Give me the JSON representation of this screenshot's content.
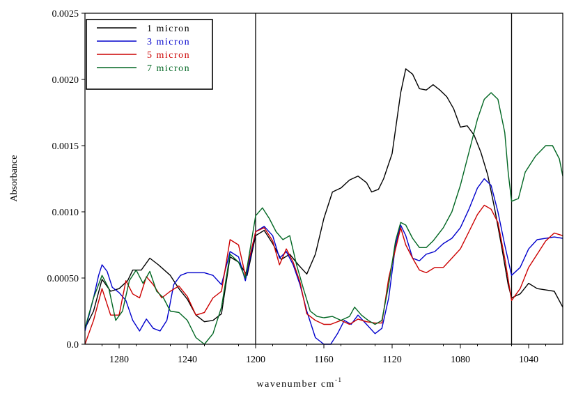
{
  "chart_data": {
    "type": "line",
    "title": "",
    "xlabel": "wavenumber cm",
    "xlabel_superscript": "-1",
    "ylabel": "Absorbance",
    "xlim": [
      1300,
      1020
    ],
    "ylim": [
      0,
      0.0025
    ],
    "x_reversed": true,
    "x_ticks": [
      1280,
      1240,
      1200,
      1160,
      1120,
      1080,
      1040
    ],
    "x_tick_labels": [
      "1280",
      "1240",
      "1200",
      "1160",
      "1120",
      "1080",
      "1040"
    ],
    "y_ticks": [
      0,
      0.0005,
      0.001,
      0.0015,
      0.002,
      0.0025
    ],
    "y_tick_labels": [
      "0.0",
      "0.00050",
      "0.0010",
      "0.0015",
      "0.0020",
      "0.0025"
    ],
    "vertical_lines": [
      1200,
      1050
    ],
    "legend_position": "top-left",
    "grid": false,
    "series": [
      {
        "name": "1 micron",
        "color": "#000000",
        "points": [
          [
            1300,
            0.00012
          ],
          [
            1295,
            0.00025
          ],
          [
            1290,
            0.00049
          ],
          [
            1285,
            0.0004
          ],
          [
            1280,
            0.00042
          ],
          [
            1275,
            0.00048
          ],
          [
            1272,
            0.00056
          ],
          [
            1267,
            0.00056
          ],
          [
            1262,
            0.00065
          ],
          [
            1257,
            0.0006
          ],
          [
            1250,
            0.00052
          ],
          [
            1245,
            0.00042
          ],
          [
            1240,
            0.00034
          ],
          [
            1235,
            0.00022
          ],
          [
            1230,
            0.00017
          ],
          [
            1225,
            0.00018
          ],
          [
            1220,
            0.00023
          ],
          [
            1215,
            0.00066
          ],
          [
            1210,
            0.00062
          ],
          [
            1205,
            0.00052
          ],
          [
            1200,
            0.00082
          ],
          [
            1195,
            0.00086
          ],
          [
            1190,
            0.00076
          ],
          [
            1185,
            0.00064
          ],
          [
            1180,
            0.00068
          ],
          [
            1175,
            0.0006
          ],
          [
            1170,
            0.00053
          ],
          [
            1165,
            0.00068
          ],
          [
            1160,
            0.00095
          ],
          [
            1155,
            0.00115
          ],
          [
            1150,
            0.00118
          ],
          [
            1145,
            0.00124
          ],
          [
            1140,
            0.00127
          ],
          [
            1135,
            0.00122
          ],
          [
            1132,
            0.00115
          ],
          [
            1128,
            0.00117
          ],
          [
            1125,
            0.00125
          ],
          [
            1120,
            0.00144
          ],
          [
            1115,
            0.0019
          ],
          [
            1112,
            0.00208
          ],
          [
            1108,
            0.00204
          ],
          [
            1104,
            0.00193
          ],
          [
            1100,
            0.00192
          ],
          [
            1096,
            0.00196
          ],
          [
            1092,
            0.00192
          ],
          [
            1088,
            0.00187
          ],
          [
            1084,
            0.00178
          ],
          [
            1080,
            0.00164
          ],
          [
            1076,
            0.00165
          ],
          [
            1072,
            0.00158
          ],
          [
            1068,
            0.00145
          ],
          [
            1064,
            0.00128
          ],
          [
            1060,
            0.00103
          ],
          [
            1056,
            0.00075
          ],
          [
            1052,
            0.00045
          ],
          [
            1050,
            0.00035
          ],
          [
            1045,
            0.00038
          ],
          [
            1040,
            0.00046
          ],
          [
            1035,
            0.00042
          ],
          [
            1030,
            0.00041
          ],
          [
            1025,
            0.0004
          ],
          [
            1020,
            0.00028
          ]
        ]
      },
      {
        "name": "3 micron",
        "color": "#0000cc",
        "points": [
          [
            1300,
            0.0001
          ],
          [
            1295,
            0.00035
          ],
          [
            1292,
            0.00052
          ],
          [
            1290,
            0.0006
          ],
          [
            1287,
            0.00055
          ],
          [
            1284,
            0.00043
          ],
          [
            1280,
            0.00039
          ],
          [
            1276,
            0.00033
          ],
          [
            1272,
            0.00018
          ],
          [
            1268,
            0.0001
          ],
          [
            1264,
            0.00019
          ],
          [
            1260,
            0.00012
          ],
          [
            1256,
            0.0001
          ],
          [
            1252,
            0.00018
          ],
          [
            1248,
            0.00045
          ],
          [
            1244,
            0.00052
          ],
          [
            1240,
            0.00054
          ],
          [
            1230,
            0.00054
          ],
          [
            1225,
            0.00052
          ],
          [
            1220,
            0.00045
          ],
          [
            1215,
            0.0007
          ],
          [
            1210,
            0.00066
          ],
          [
            1206,
            0.00048
          ],
          [
            1200,
            0.00085
          ],
          [
            1195,
            0.00089
          ],
          [
            1190,
            0.00082
          ],
          [
            1186,
            0.00065
          ],
          [
            1182,
            0.0007
          ],
          [
            1178,
            0.0006
          ],
          [
            1174,
            0.00045
          ],
          [
            1170,
            0.00025
          ],
          [
            1165,
            5e-05
          ],
          [
            1160,
            0.0
          ],
          [
            1156,
            0.0
          ],
          [
            1152,
            8e-05
          ],
          [
            1148,
            0.00018
          ],
          [
            1144,
            0.00015
          ],
          [
            1140,
            0.00022
          ],
          [
            1135,
            0.00015
          ],
          [
            1130,
            8e-05
          ],
          [
            1126,
            0.00012
          ],
          [
            1122,
            0.00035
          ],
          [
            1118,
            0.00075
          ],
          [
            1115,
            0.0009
          ],
          [
            1112,
            0.00082
          ],
          [
            1108,
            0.00065
          ],
          [
            1104,
            0.00063
          ],
          [
            1100,
            0.00068
          ],
          [
            1095,
            0.0007
          ],
          [
            1090,
            0.00076
          ],
          [
            1085,
            0.0008
          ],
          [
            1080,
            0.00088
          ],
          [
            1075,
            0.00102
          ],
          [
            1070,
            0.00118
          ],
          [
            1066,
            0.00125
          ],
          [
            1062,
            0.0012
          ],
          [
            1058,
            0.001
          ],
          [
            1054,
            0.00075
          ],
          [
            1050,
            0.00052
          ],
          [
            1045,
            0.00058
          ],
          [
            1040,
            0.00072
          ],
          [
            1035,
            0.00079
          ],
          [
            1030,
            0.0008
          ],
          [
            1025,
            0.00081
          ],
          [
            1020,
            0.0008
          ]
        ]
      },
      {
        "name": "5 micron",
        "color": "#cc0000",
        "points": [
          [
            1300,
            0.0
          ],
          [
            1295,
            0.00018
          ],
          [
            1290,
            0.00042
          ],
          [
            1285,
            0.00022
          ],
          [
            1280,
            0.00022
          ],
          [
            1276,
            0.00048
          ],
          [
            1272,
            0.00038
          ],
          [
            1268,
            0.00035
          ],
          [
            1264,
            0.00051
          ],
          [
            1260,
            0.00045
          ],
          [
            1255,
            0.00035
          ],
          [
            1250,
            0.0004
          ],
          [
            1245,
            0.00044
          ],
          [
            1240,
            0.00036
          ],
          [
            1235,
            0.00022
          ],
          [
            1230,
            0.00024
          ],
          [
            1225,
            0.00035
          ],
          [
            1220,
            0.0004
          ],
          [
            1215,
            0.00079
          ],
          [
            1210,
            0.00075
          ],
          [
            1206,
            0.00052
          ],
          [
            1200,
            0.00085
          ],
          [
            1195,
            0.00088
          ],
          [
            1190,
            0.00078
          ],
          [
            1186,
            0.0006
          ],
          [
            1182,
            0.00072
          ],
          [
            1178,
            0.00062
          ],
          [
            1174,
            0.00047
          ],
          [
            1170,
            0.00023
          ],
          [
            1165,
            0.00018
          ],
          [
            1160,
            0.00015
          ],
          [
            1156,
            0.00015
          ],
          [
            1150,
            0.00018
          ],
          [
            1145,
            0.00015
          ],
          [
            1140,
            0.00019
          ],
          [
            1135,
            0.00017
          ],
          [
            1130,
            0.00016
          ],
          [
            1126,
            0.00016
          ],
          [
            1122,
            0.0005
          ],
          [
            1118,
            0.00072
          ],
          [
            1115,
            0.00088
          ],
          [
            1112,
            0.00075
          ],
          [
            1108,
            0.00065
          ],
          [
            1104,
            0.00056
          ],
          [
            1100,
            0.00054
          ],
          [
            1095,
            0.00058
          ],
          [
            1090,
            0.00058
          ],
          [
            1085,
            0.00065
          ],
          [
            1080,
            0.00072
          ],
          [
            1075,
            0.00085
          ],
          [
            1070,
            0.00098
          ],
          [
            1066,
            0.00105
          ],
          [
            1062,
            0.00102
          ],
          [
            1058,
            0.00092
          ],
          [
            1054,
            0.00065
          ],
          [
            1050,
            0.00033
          ],
          [
            1045,
            0.00042
          ],
          [
            1040,
            0.00058
          ],
          [
            1035,
            0.00068
          ],
          [
            1030,
            0.00078
          ],
          [
            1025,
            0.00084
          ],
          [
            1020,
            0.00082
          ]
        ]
      },
      {
        "name": "7 micron",
        "color": "#006622",
        "points": [
          [
            1300,
            0.00012
          ],
          [
            1295,
            0.00035
          ],
          [
            1290,
            0.00052
          ],
          [
            1286,
            0.00042
          ],
          [
            1282,
            0.00018
          ],
          [
            1278,
            0.00025
          ],
          [
            1274,
            0.00048
          ],
          [
            1270,
            0.00056
          ],
          [
            1266,
            0.00046
          ],
          [
            1262,
            0.00055
          ],
          [
            1258,
            0.0004
          ],
          [
            1254,
            0.00035
          ],
          [
            1250,
            0.00025
          ],
          [
            1245,
            0.00024
          ],
          [
            1240,
            0.00018
          ],
          [
            1235,
            5e-05
          ],
          [
            1230,
            0.0
          ],
          [
            1225,
            8e-05
          ],
          [
            1220,
            0.00028
          ],
          [
            1215,
            0.00068
          ],
          [
            1210,
            0.00062
          ],
          [
            1206,
            0.0005
          ],
          [
            1200,
            0.00097
          ],
          [
            1196,
            0.00103
          ],
          [
            1192,
            0.00095
          ],
          [
            1188,
            0.00085
          ],
          [
            1184,
            0.00079
          ],
          [
            1180,
            0.00082
          ],
          [
            1176,
            0.0006
          ],
          [
            1172,
            0.00042
          ],
          [
            1168,
            0.00025
          ],
          [
            1164,
            0.00021
          ],
          [
            1160,
            0.0002
          ],
          [
            1155,
            0.00021
          ],
          [
            1150,
            0.00018
          ],
          [
            1145,
            0.00021
          ],
          [
            1142,
            0.00028
          ],
          [
            1138,
            0.00022
          ],
          [
            1134,
            0.00018
          ],
          [
            1130,
            0.00015
          ],
          [
            1126,
            0.00018
          ],
          [
            1122,
            0.00045
          ],
          [
            1118,
            0.00078
          ],
          [
            1115,
            0.00092
          ],
          [
            1112,
            0.0009
          ],
          [
            1108,
            0.0008
          ],
          [
            1104,
            0.00073
          ],
          [
            1100,
            0.00073
          ],
          [
            1096,
            0.00078
          ],
          [
            1090,
            0.00088
          ],
          [
            1085,
            0.001
          ],
          [
            1080,
            0.0012
          ],
          [
            1075,
            0.00145
          ],
          [
            1070,
            0.0017
          ],
          [
            1066,
            0.00185
          ],
          [
            1062,
            0.0019
          ],
          [
            1058,
            0.00185
          ],
          [
            1054,
            0.0016
          ],
          [
            1052,
            0.0013
          ],
          [
            1050,
            0.00108
          ],
          [
            1046,
            0.0011
          ],
          [
            1042,
            0.0013
          ],
          [
            1036,
            0.00142
          ],
          [
            1030,
            0.0015
          ],
          [
            1026,
            0.0015
          ],
          [
            1022,
            0.0014
          ],
          [
            1020,
            0.00127
          ]
        ]
      }
    ]
  }
}
